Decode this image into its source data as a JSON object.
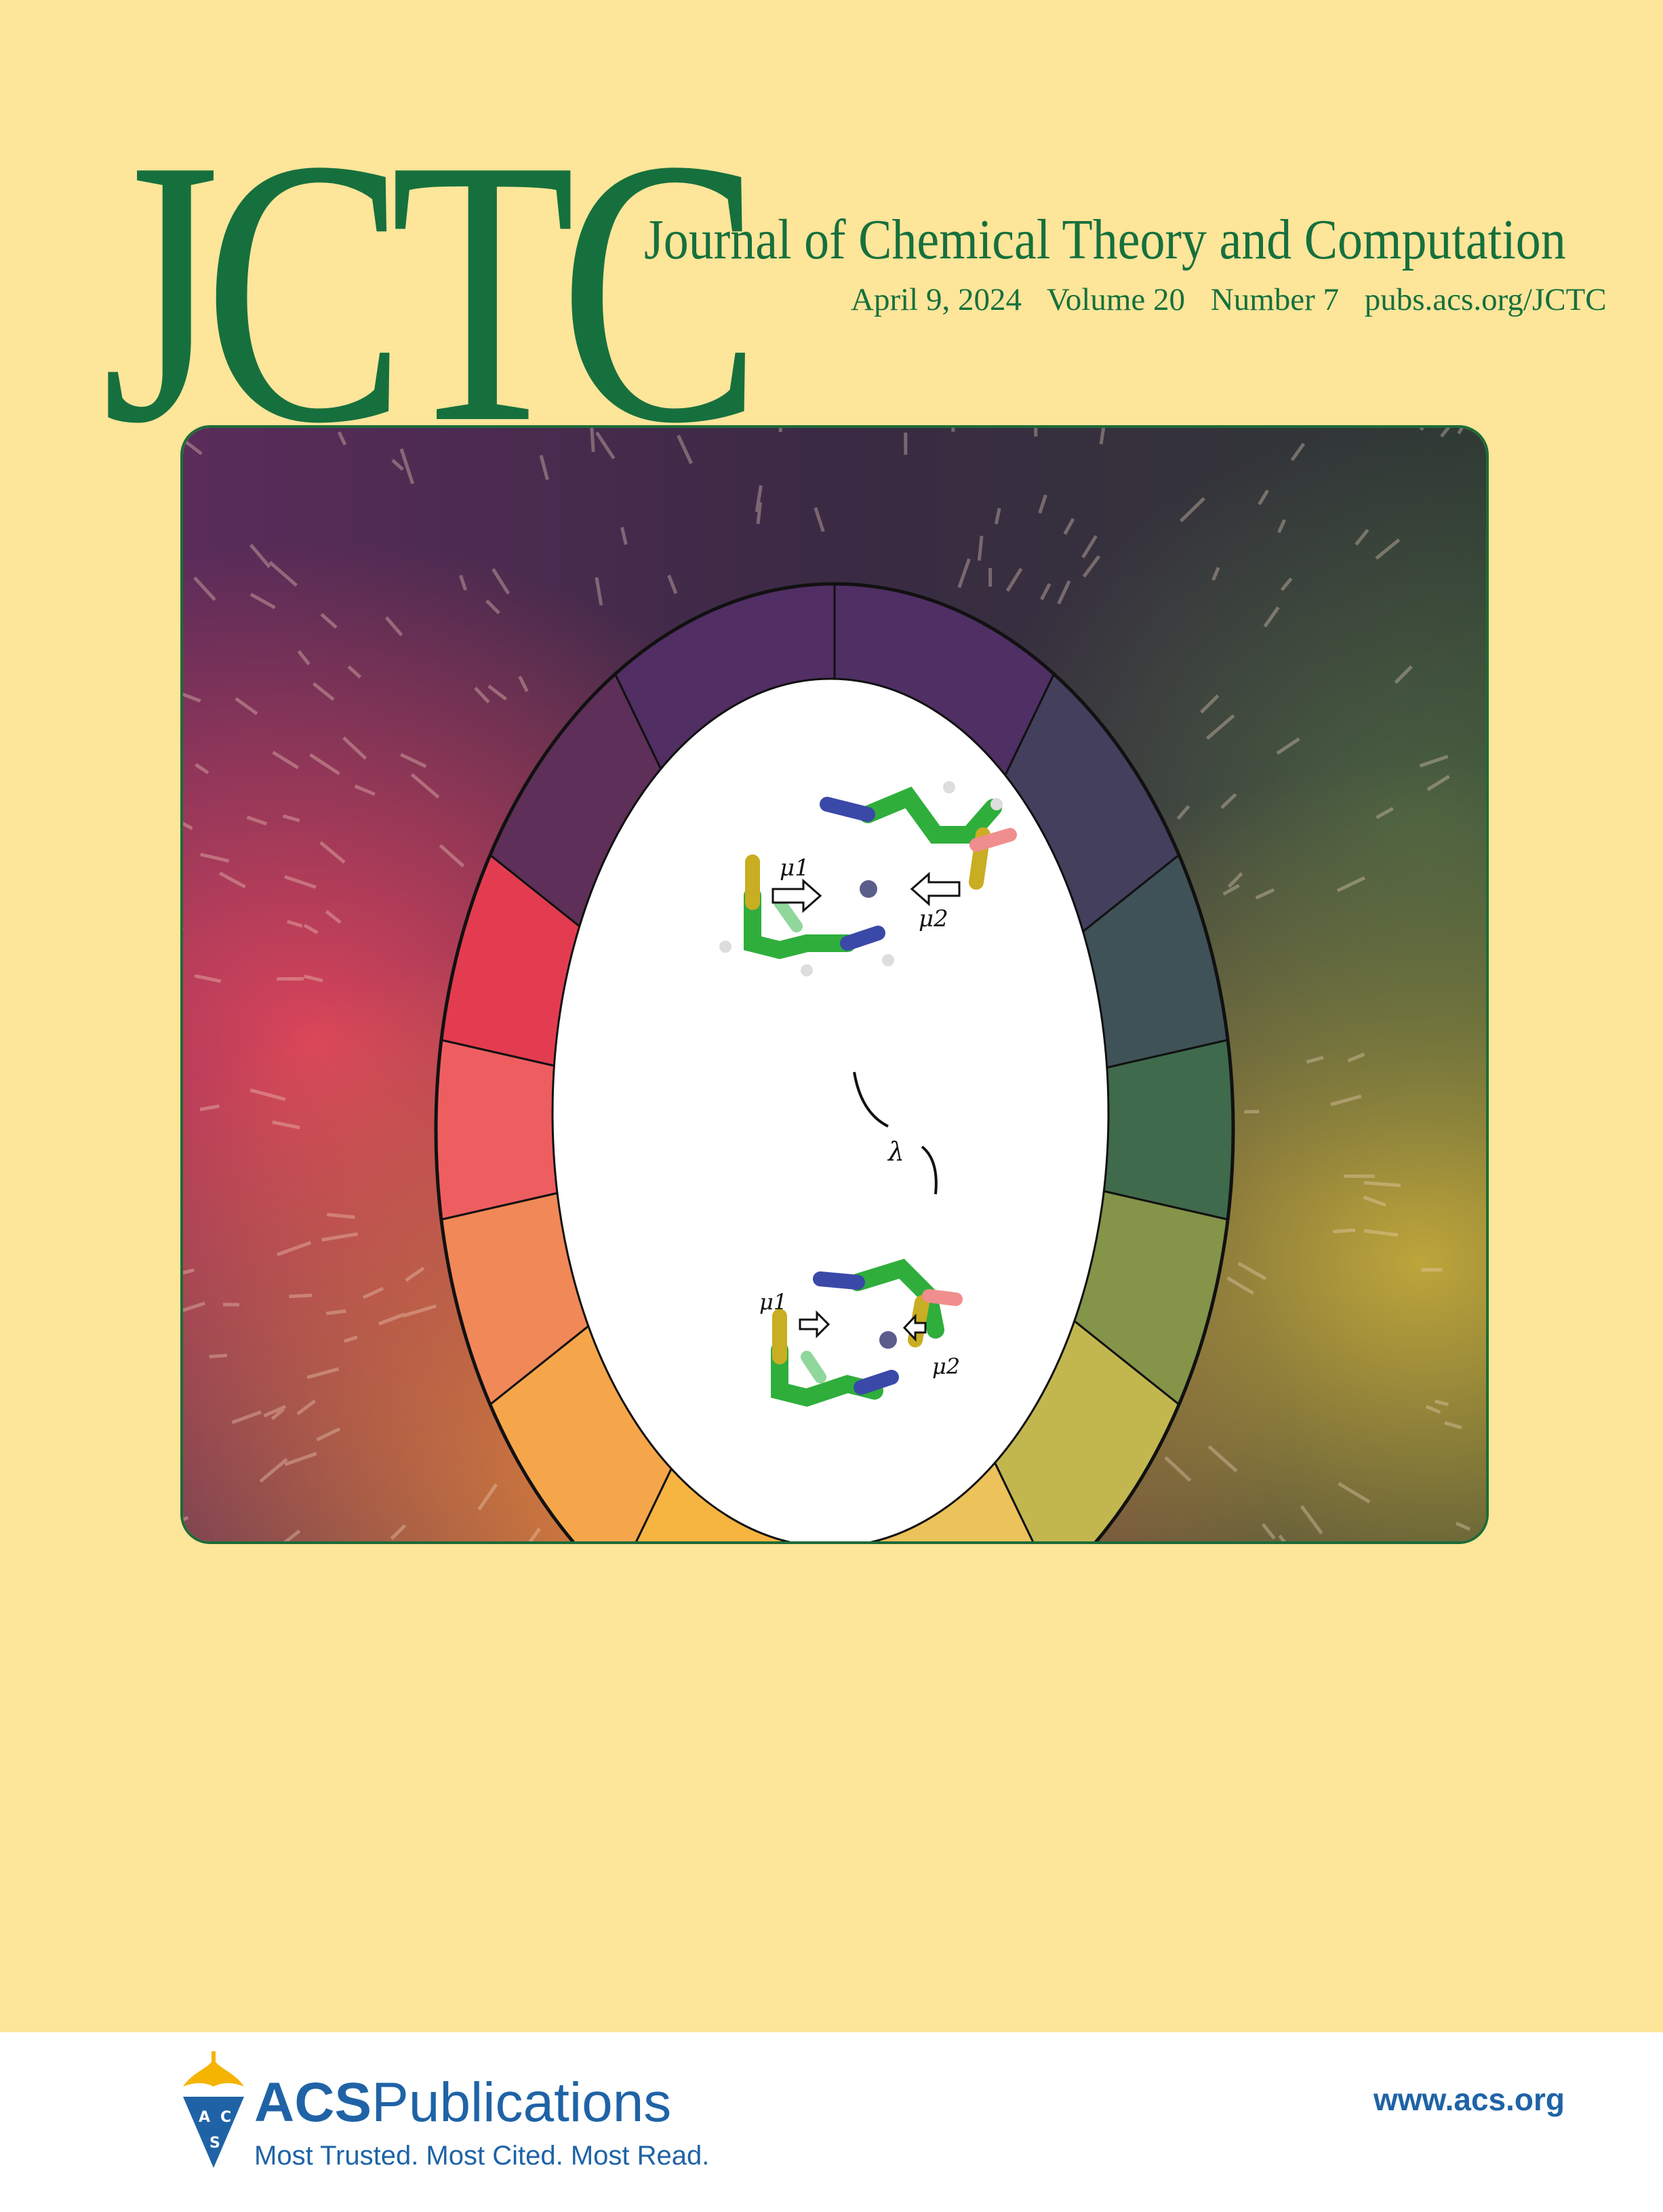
{
  "masthead": {
    "logo": "JCTC",
    "journal_title": "Journal of Chemical Theory and Computation",
    "date": "April 9, 2024",
    "volume": "Volume 20",
    "number": "Number 7",
    "url": "pubs.acs.org/JCTC"
  },
  "cover_art": {
    "label_mu1": "μ1",
    "label_mu2": "μ2",
    "label_lambda": "λ",
    "ring_colors": [
      "#4f2f64",
      "#433f5d",
      "#3f5258",
      "#3f6a4c",
      "#849448",
      "#c2b74f",
      "#ecc25a",
      "#f6b441",
      "#f5a64a",
      "#f18857",
      "#ee5e60",
      "#e33c50",
      "#5e2f58",
      "#512e63"
    ]
  },
  "footer": {
    "publisher_bold": "ACS",
    "publisher_rest": "Publications",
    "tagline": "Most Trusted. Most Cited. Most Read.",
    "website": "www.acs.org",
    "emblem_letters": [
      "A",
      "C",
      "S"
    ]
  },
  "colors": {
    "background": "#fde59a",
    "brand_green": "#16703d",
    "acs_blue": "#1f63a6",
    "acs_gold": "#f4b400"
  }
}
